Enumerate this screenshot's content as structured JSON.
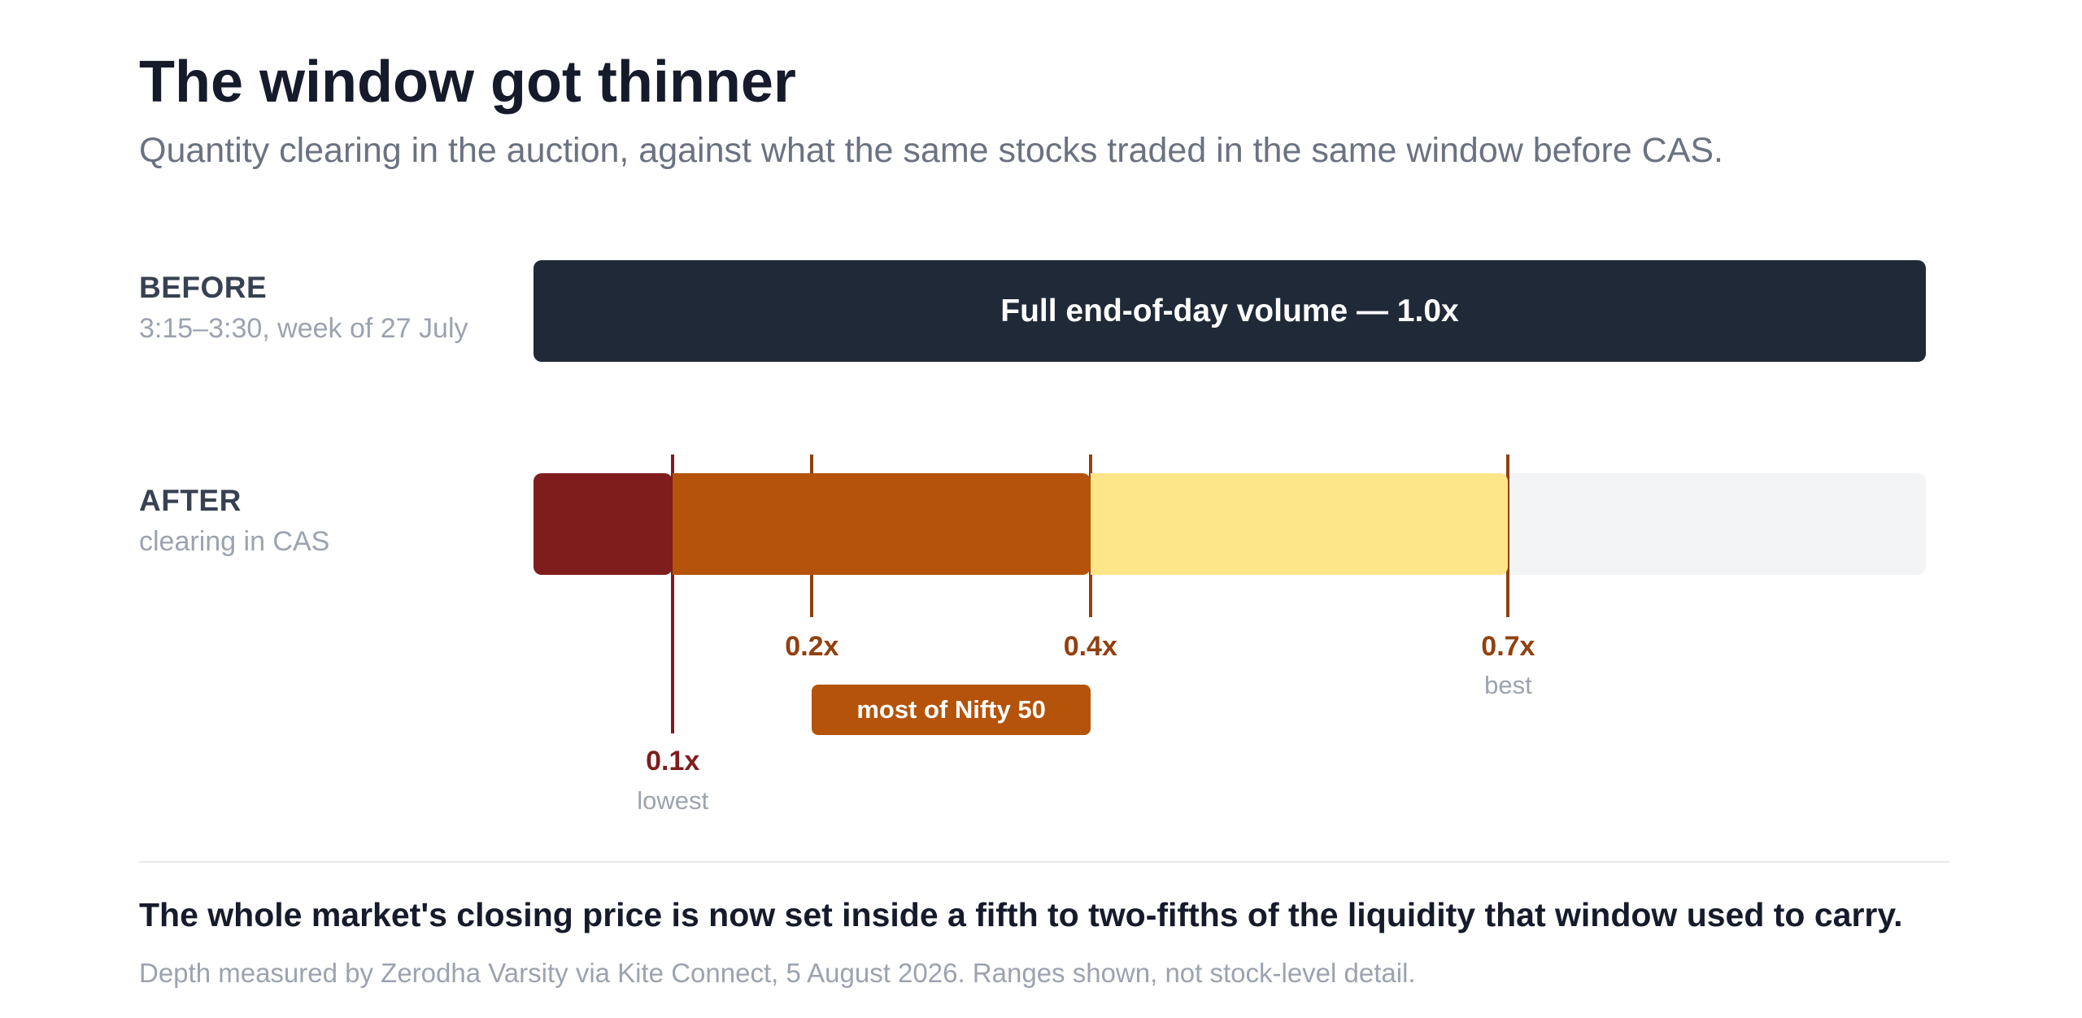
{
  "title": "The window got thinner",
  "subtitle": "Quantity clearing in the auction, against what the same stocks traded in the same window before CAS.",
  "chart_data": {
    "type": "bar",
    "scale": {
      "min": 0,
      "max": 1.0,
      "unit": "x"
    },
    "before": {
      "label": "BEFORE",
      "sublabel": "3:15–3:30, week of 27 July",
      "value": 1.0,
      "bar_label": "Full end-of-day volume — 1.0x",
      "color": "#1f2937"
    },
    "after": {
      "label": "AFTER",
      "sublabel": "clearing in CAS",
      "track_color": "#f3f4f6",
      "segments": [
        {
          "from": 0.0,
          "to": 0.1,
          "color": "#7f1d1d"
        },
        {
          "from": 0.1,
          "to": 0.4,
          "color": "#b45309"
        },
        {
          "from": 0.4,
          "to": 0.7,
          "color": "#fde68a"
        }
      ],
      "markers": [
        {
          "value": 0.1,
          "label": "0.1x",
          "note": "lowest",
          "color": "#7f1d1d",
          "placement": "low"
        },
        {
          "value": 0.2,
          "label": "0.2x",
          "note": "",
          "color": "#92400e",
          "placement": "high"
        },
        {
          "value": 0.4,
          "label": "0.4x",
          "note": "",
          "color": "#92400e",
          "placement": "high"
        },
        {
          "value": 0.7,
          "label": "0.7x",
          "note": "best",
          "color": "#92400e",
          "placement": "high"
        }
      ],
      "bands": [
        {
          "from": 0.2,
          "to": 0.4,
          "label": "most of Nifty 50",
          "color": "#b45309"
        }
      ]
    }
  },
  "takeaway": "The whole market's closing price is now set inside a fifth to two-fifths of the liquidity that window used to carry.",
  "source": "Depth measured by Zerodha Varsity via Kite Connect, 5 August 2026. Ranges shown, not stock-level detail."
}
